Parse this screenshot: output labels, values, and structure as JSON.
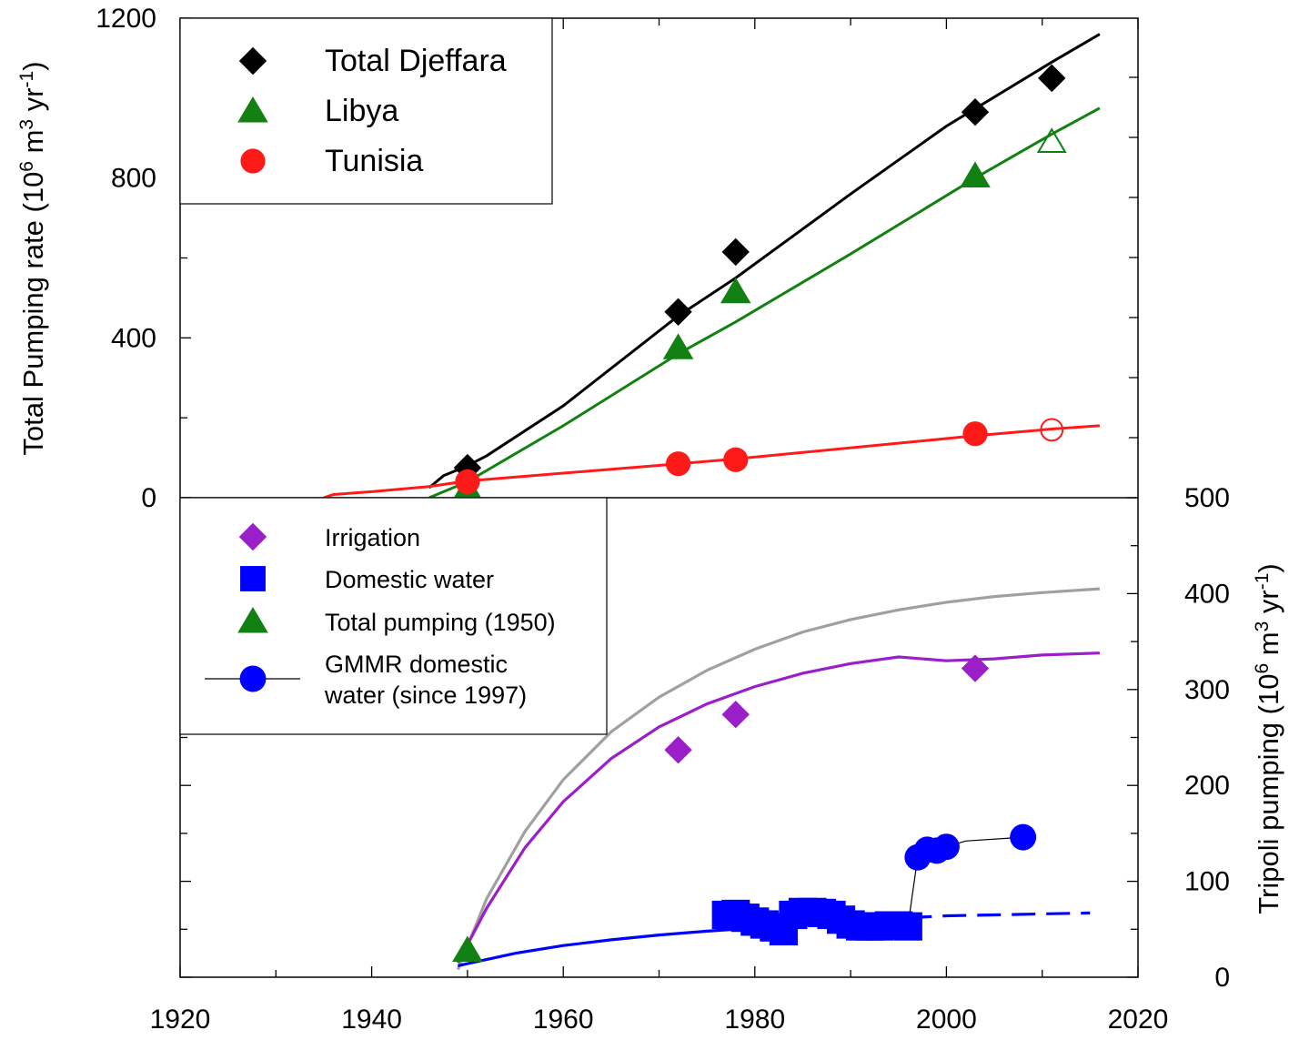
{
  "chart_data": [
    {
      "type": "line",
      "panel": "top",
      "ylabel_main": "Total Pumping rate (10",
      "ylabel_sup1": "6",
      "ylabel_mid": " m",
      "ylabel_sup2": "3",
      "ylabel_end": " yr",
      "ylabel_sup3": "-1",
      "ylabel_close": ")",
      "xlim": [
        1920,
        2020
      ],
      "ylim": [
        0,
        1200
      ],
      "y_ticks": [
        "0",
        "400",
        "800",
        "1200"
      ],
      "y_tick_values": [
        0,
        400,
        800,
        1200
      ],
      "legend_position": "top-left",
      "series": [
        {
          "name": "Total Djeffara",
          "color": "#000000",
          "marker": "diamond",
          "points": [
            [
              1950,
              75
            ],
            [
              1972,
              465
            ],
            [
              1978,
              615
            ],
            [
              2003,
              965
            ],
            [
              2011,
              1050
            ]
          ],
          "line": [
            [
              1946,
              25
            ],
            [
              1947.5,
              55
            ],
            [
              1949,
              70
            ],
            [
              1950,
              80
            ],
            [
              1952,
              105
            ],
            [
              1960,
              230
            ],
            [
              1972,
              455
            ],
            [
              1978,
              550
            ],
            [
              1990,
              760
            ],
            [
              2000,
              930
            ],
            [
              2011,
              1090
            ],
            [
              2016,
              1160
            ]
          ]
        },
        {
          "name": "Libya",
          "color": "#138013",
          "marker": "triangle",
          "points": [
            [
              1950,
              22
            ],
            [
              1972,
              375
            ],
            [
              1978,
              515
            ],
            [
              2003,
              805
            ]
          ],
          "open_points": [
            [
              2011,
              890
            ]
          ],
          "line": [
            [
              1946,
              0
            ],
            [
              1950,
              40
            ],
            [
              1960,
              180
            ],
            [
              1972,
              360
            ],
            [
              1978,
              440
            ],
            [
              1990,
              610
            ],
            [
              2003,
              800
            ],
            [
              2011,
              910
            ],
            [
              2016,
              975
            ]
          ]
        },
        {
          "name": "Tunisia",
          "color": "#ff1a1a",
          "marker": "circle",
          "points": [
            [
              1950,
              40
            ],
            [
              1972,
              85
            ],
            [
              1978,
              95
            ],
            [
              2003,
              160
            ]
          ],
          "open_points": [
            [
              2011,
              170
            ]
          ],
          "line": [
            [
              1935,
              0
            ],
            [
              1936,
              8
            ],
            [
              1940,
              15
            ],
            [
              1946,
              28
            ],
            [
              1950,
              42
            ],
            [
              1972,
              85
            ],
            [
              1978,
              97
            ],
            [
              2003,
              155
            ],
            [
              2011,
              172
            ],
            [
              2016,
              180
            ]
          ]
        }
      ]
    },
    {
      "type": "line",
      "panel": "bottom",
      "ylabel_main": "Tripoli pumping (10",
      "ylabel_sup1": "6",
      "ylabel_mid": " m",
      "ylabel_sup2": "3",
      "ylabel_end": " yr",
      "ylabel_sup3": "-1",
      "ylabel_close": ")",
      "xlim": [
        1920,
        2020
      ],
      "ylim": [
        0,
        500
      ],
      "x_ticks": [
        "1920",
        "1940",
        "1960",
        "1980",
        "2000",
        "2020"
      ],
      "x_tick_values": [
        1920,
        1940,
        1960,
        1980,
        2000,
        2020
      ],
      "y_ticks": [
        "0",
        "100",
        "200",
        "300",
        "400",
        "500"
      ],
      "y_tick_values": [
        0,
        100,
        200,
        300,
        400,
        500
      ],
      "legend_position": "top-left",
      "series": [
        {
          "name": "Irrigation",
          "color": "#9a1fc8",
          "marker": "diamond",
          "points": [
            [
              1972,
              237
            ],
            [
              1978,
              274
            ],
            [
              2003,
              322
            ]
          ]
        },
        {
          "name": "Domestic water",
          "color": "#0000ff",
          "marker": "square",
          "points": [
            [
              1977,
              65
            ],
            [
              1978,
              66
            ],
            [
              1979,
              62
            ],
            [
              1980,
              58
            ],
            [
              1981,
              55
            ],
            [
              1982,
              52
            ],
            [
              1983,
              48
            ],
            [
              1984,
              65
            ],
            [
              1985,
              68
            ],
            [
              1986,
              68
            ],
            [
              1987,
              67
            ],
            [
              1988,
              65
            ],
            [
              1989,
              60
            ],
            [
              1990,
              55
            ],
            [
              1991,
              53
            ],
            [
              1992,
              53
            ],
            [
              1993,
              53
            ],
            [
              1994,
              54
            ],
            [
              1995,
              54
            ],
            [
              1996,
              53
            ]
          ]
        },
        {
          "name": "Total pumping (1950)",
          "color": "#138013",
          "marker": "triangle",
          "points": [
            [
              1950,
              28
            ]
          ]
        },
        {
          "name": "GMMR domestic",
          "name_line2": "water (since 1997)",
          "color": "#0000ff",
          "marker": "circle",
          "points": [
            [
              1997,
              125
            ],
            [
              1998,
              133
            ],
            [
              1999,
              132
            ],
            [
              2000,
              136
            ],
            [
              2008,
              146
            ]
          ],
          "connector": [
            [
              1996,
              55
            ],
            [
              1997,
              125
            ],
            [
              1998,
              133
            ],
            [
              1999,
              132
            ],
            [
              2000,
              136
            ],
            [
              2002,
              142
            ],
            [
              2008,
              146
            ]
          ]
        }
      ],
      "curves": [
        {
          "color": "#a0a0a0",
          "style": "solid",
          "line": [
            [
              1949,
              8
            ],
            [
              1952,
              82
            ],
            [
              1956,
              152
            ],
            [
              1960,
              206
            ],
            [
              1965,
              256
            ],
            [
              1970,
              292
            ],
            [
              1975,
              320
            ],
            [
              1980,
              342
            ],
            [
              1985,
              360
            ],
            [
              1990,
              373
            ],
            [
              1995,
              383
            ],
            [
              2000,
              391
            ],
            [
              2005,
              397
            ],
            [
              2010,
              401
            ],
            [
              2016,
              405
            ]
          ]
        },
        {
          "color": "#9a1fc8",
          "style": "solid",
          "line": [
            [
              1949,
              15
            ],
            [
              1952,
              72
            ],
            [
              1956,
              135
            ],
            [
              1960,
              183
            ],
            [
              1965,
              228
            ],
            [
              1970,
              261
            ],
            [
              1975,
              285
            ],
            [
              1980,
              303
            ],
            [
              1985,
              317
            ],
            [
              1990,
              327
            ],
            [
              1995,
              334
            ],
            [
              2000,
              330
            ],
            [
              2005,
              332
            ],
            [
              2010,
              336
            ],
            [
              2016,
              338
            ]
          ]
        },
        {
          "color": "#0000ff",
          "style": "solid",
          "line": [
            [
              1949,
              12
            ],
            [
              1955,
              25
            ],
            [
              1960,
              33
            ],
            [
              1965,
              39
            ],
            [
              1970,
              44
            ],
            [
              1975,
              48
            ],
            [
              1978,
              50
            ]
          ]
        },
        {
          "color": "#0000ff",
          "style": "dashed",
          "line": [
            [
              1996,
              62
            ],
            [
              2000,
              64
            ],
            [
              2005,
              65
            ],
            [
              2010,
              66
            ],
            [
              2015,
              67
            ]
          ]
        }
      ]
    }
  ]
}
